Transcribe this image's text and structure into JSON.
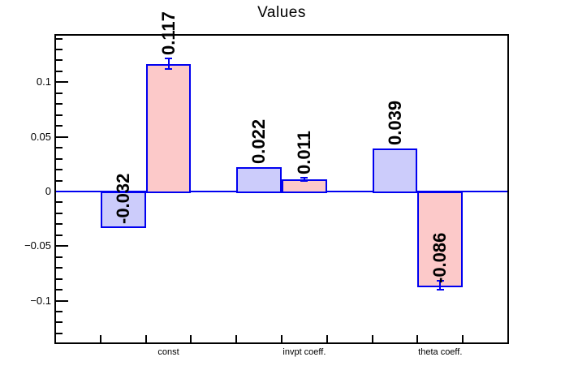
{
  "page": {
    "background": "#ffffff",
    "text_color": "#000000"
  },
  "chart_data": {
    "type": "bar",
    "title": "Values",
    "categories": [
      "const",
      "invpt coeff.",
      "theta coeff."
    ],
    "series": [
      {
        "name": "blue-series",
        "fill": "#ccccfb",
        "line": "#0000f0",
        "values": [
          -0.032,
          0.022,
          0.039
        ],
        "labels": [
          "-0.032",
          "0.022",
          "0.039"
        ],
        "errors": [
          0,
          0,
          0
        ]
      },
      {
        "name": "pink-series",
        "fill": "#fcc9c9",
        "line": "#0000f0",
        "values": [
          0.117,
          0.011,
          -0.086
        ],
        "labels": [
          "0.117",
          "0.011",
          "-0.086"
        ],
        "errors": [
          0.005,
          0.0015,
          0.004
        ]
      }
    ],
    "y_ticks": [
      {
        "value": 0.1,
        "label": "0.1"
      },
      {
        "value": 0.05,
        "label": "0.05"
      },
      {
        "value": 0,
        "label": "0"
      },
      {
        "value": -0.05,
        "label": "−0.05"
      },
      {
        "value": -0.1,
        "label": "−0.1"
      }
    ],
    "minor_tick_step": 0.01,
    "ylim": [
      -0.139,
      0.1434
    ],
    "n_bins": 10,
    "grid": false,
    "legend": false,
    "baseline_color": "#0000f0",
    "frame_color": "#000000"
  }
}
